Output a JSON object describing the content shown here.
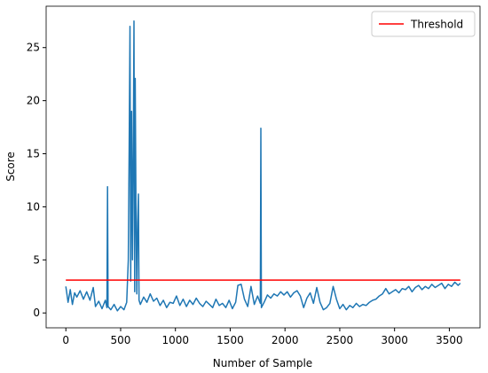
{
  "chart_data": {
    "type": "line",
    "xlabel": "Number of Sample",
    "ylabel": "Score",
    "xlim": [
      -180,
      3780
    ],
    "ylim": [
      -1.4,
      28.9
    ],
    "xticks": [
      0,
      500,
      1000,
      1500,
      2000,
      2500,
      3000,
      3500
    ],
    "yticks": [
      0,
      5,
      10,
      15,
      20,
      25
    ],
    "legend": "upper right",
    "series": [
      {
        "color": "#1f77b4",
        "x": [
          0,
          20,
          40,
          60,
          80,
          100,
          130,
          160,
          190,
          220,
          250,
          270,
          300,
          330,
          360,
          375,
          380,
          385,
          410,
          440,
          470,
          500,
          530,
          555,
          570,
          578,
          585,
          592,
          600,
          608,
          615,
          622,
          628,
          633,
          640,
          648,
          655,
          662,
          668,
          680,
          710,
          740,
          770,
          800,
          830,
          860,
          890,
          920,
          950,
          980,
          1010,
          1040,
          1070,
          1100,
          1130,
          1160,
          1190,
          1220,
          1250,
          1280,
          1310,
          1340,
          1370,
          1400,
          1430,
          1460,
          1490,
          1520,
          1550,
          1570,
          1600,
          1630,
          1660,
          1690,
          1720,
          1750,
          1775,
          1780,
          1785,
          1810,
          1840,
          1870,
          1900,
          1930,
          1960,
          1990,
          2020,
          2050,
          2080,
          2110,
          2140,
          2170,
          2200,
          2230,
          2260,
          2290,
          2320,
          2350,
          2380,
          2410,
          2440,
          2470,
          2500,
          2530,
          2560,
          2590,
          2620,
          2650,
          2680,
          2710,
          2740,
          2770,
          2800,
          2830,
          2860,
          2890,
          2920,
          2950,
          2980,
          3010,
          3040,
          3070,
          3100,
          3130,
          3160,
          3190,
          3220,
          3250,
          3280,
          3310,
          3340,
          3370,
          3400,
          3430,
          3460,
          3490,
          3520,
          3550,
          3580,
          3600
        ],
        "values": [
          2.5,
          1.0,
          2.2,
          0.8,
          1.9,
          1.5,
          2.1,
          1.3,
          2.0,
          1.2,
          2.4,
          0.6,
          1.1,
          0.4,
          1.2,
          0.5,
          11.9,
          0.6,
          0.3,
          0.8,
          0.2,
          0.6,
          0.3,
          1.0,
          5.0,
          15.8,
          27.0,
          3.0,
          19.0,
          5.0,
          15.0,
          27.5,
          2.0,
          22.1,
          9.0,
          1.8,
          8.5,
          11.2,
          1.2,
          0.8,
          1.5,
          1.0,
          1.8,
          1.1,
          1.4,
          0.7,
          1.2,
          0.5,
          1.0,
          0.9,
          1.6,
          0.7,
          1.3,
          0.6,
          1.2,
          0.8,
          1.4,
          0.9,
          0.6,
          1.1,
          0.8,
          0.5,
          1.3,
          0.7,
          0.9,
          0.5,
          1.2,
          0.4,
          1.0,
          2.6,
          2.7,
          1.3,
          0.6,
          2.5,
          0.8,
          1.6,
          0.9,
          17.4,
          0.5,
          1.0,
          1.7,
          1.4,
          1.8,
          1.6,
          2.0,
          1.7,
          2.0,
          1.5,
          1.9,
          2.1,
          1.6,
          0.5,
          1.4,
          1.9,
          0.9,
          2.4,
          1.0,
          0.3,
          0.5,
          0.9,
          2.5,
          1.3,
          0.4,
          0.8,
          0.3,
          0.7,
          0.5,
          0.9,
          0.6,
          0.8,
          0.7,
          1.0,
          1.2,
          1.3,
          1.6,
          1.8,
          2.3,
          1.8,
          2.0,
          2.2,
          1.9,
          2.3,
          2.2,
          2.5,
          2.0,
          2.4,
          2.6,
          2.2,
          2.5,
          2.3,
          2.7,
          2.4,
          2.6,
          2.8,
          2.3,
          2.7,
          2.5,
          2.9,
          2.6,
          2.8
        ]
      },
      {
        "name": "Threshold",
        "color": "#ff0000",
        "x": [
          0,
          3600
        ],
        "values": [
          3.1,
          3.1
        ]
      }
    ]
  }
}
